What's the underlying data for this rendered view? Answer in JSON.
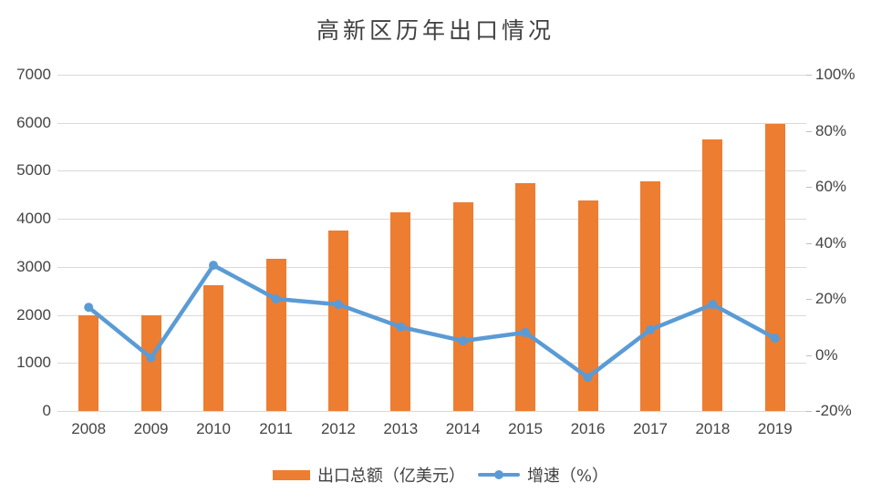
{
  "chart_data": {
    "type": "combo",
    "title": "高新区历年出口情况",
    "categories": [
      "2008",
      "2009",
      "2010",
      "2011",
      "2012",
      "2013",
      "2014",
      "2015",
      "2016",
      "2017",
      "2018",
      "2019"
    ],
    "series": [
      {
        "name": "出口总额（亿美元）",
        "type": "bar",
        "axis": "left",
        "color": "#ED7D31",
        "values": [
          2000,
          2000,
          2625,
          3170,
          3765,
          4145,
          4345,
          4750,
          4390,
          4780,
          5650,
          5985
        ]
      },
      {
        "name": "增速（%）",
        "type": "line",
        "axis": "right",
        "color": "#5B9BD5",
        "values": [
          17,
          -1,
          32,
          20,
          18,
          10,
          5,
          8,
          -8,
          9,
          18,
          6
        ]
      }
    ],
    "left_axis": {
      "min": 0,
      "max": 7000,
      "ticks": [
        {
          "label": "7000",
          "value": 7000
        },
        {
          "label": "6000",
          "value": 6000
        },
        {
          "label": "5000",
          "value": 5000
        },
        {
          "label": "4000",
          "value": 4000
        },
        {
          "label": "3000",
          "value": 3000
        },
        {
          "label": "2000",
          "value": 2000
        },
        {
          "label": "1000",
          "value": 1000
        },
        {
          "label": "0",
          "value": 0
        }
      ]
    },
    "right_axis": {
      "min": -20,
      "max": 100,
      "ticks": [
        {
          "label": "100%",
          "value": 100
        },
        {
          "label": "80%",
          "value": 80
        },
        {
          "label": "60%",
          "value": 60
        },
        {
          "label": "40%",
          "value": 40
        },
        {
          "label": "20%",
          "value": 20
        },
        {
          "label": "0%",
          "value": 0
        },
        {
          "label": "-20%",
          "value": -20
        }
      ]
    },
    "grid": true,
    "legend_position": "bottom",
    "gridline_color": "#D9D9D9",
    "text_color": "#444444",
    "title_color": "#404040"
  }
}
